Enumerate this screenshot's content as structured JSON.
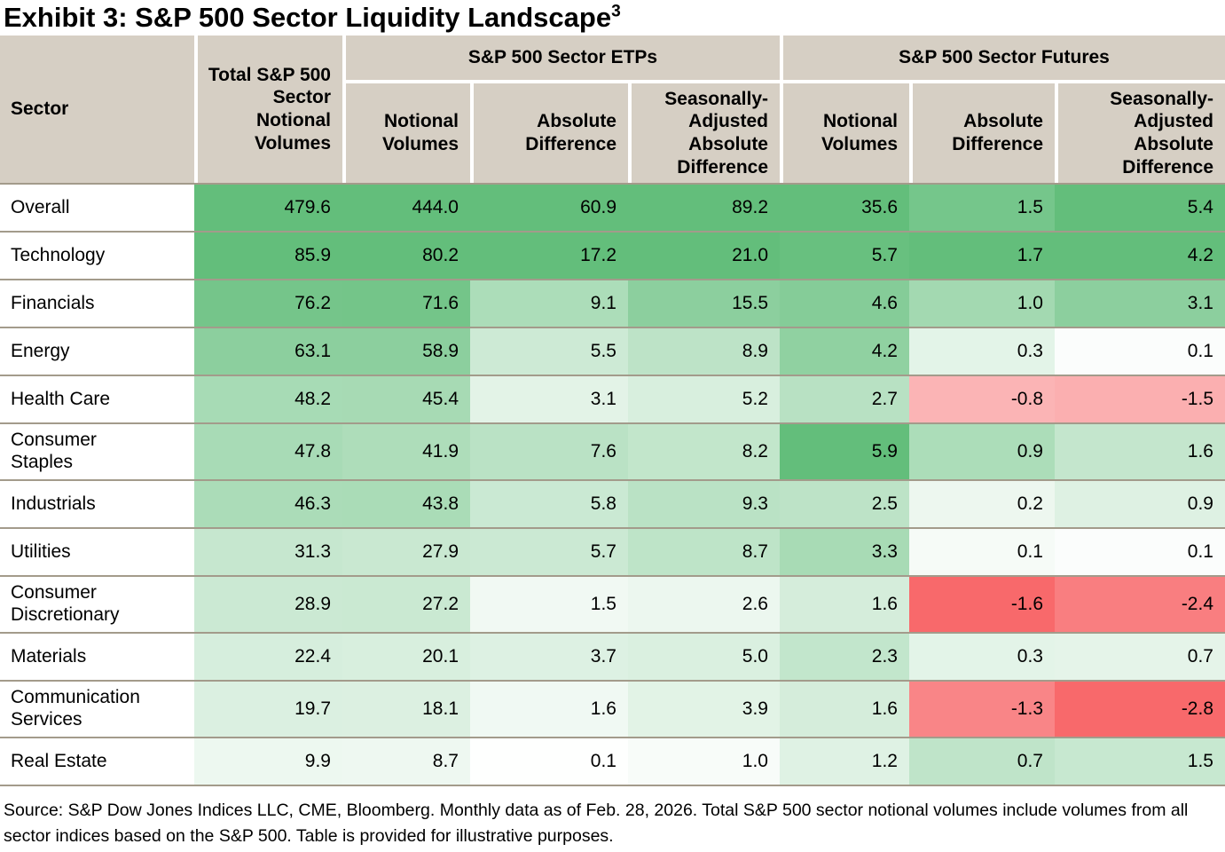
{
  "title": {
    "text": "Exhibit 3: S&P 500 Sector Liquidity Landscape",
    "superscript": "3"
  },
  "table": {
    "corner_header": "Sector",
    "total_header": "Total S&P 500 Sector Notional Volumes",
    "groups": [
      {
        "label": "S&P 500 Sector ETPs",
        "columns": [
          "Notional Volumes",
          "Absolute Difference",
          "Seasonally-Adjusted Absolute Difference"
        ]
      },
      {
        "label": "S&P 500 Sector Futures",
        "columns": [
          "Notional Volumes",
          "Absolute Difference",
          "Seasonally-Adjusted Absolute Difference"
        ]
      }
    ],
    "rows": [
      {
        "sector": "Overall",
        "tall": false,
        "values": [
          "479.6",
          "444.0",
          "60.9",
          "89.2",
          "35.6",
          "1.5",
          "5.4"
        ],
        "cell_colors": [
          "#63BE7B",
          "#63BE7B",
          "#63BE7B",
          "#63BE7B",
          "#63BE7B",
          "#75C68B",
          "#63BE7B"
        ]
      },
      {
        "sector": "Technology",
        "tall": false,
        "values": [
          "85.9",
          "80.2",
          "17.2",
          "21.0",
          "5.7",
          "1.7",
          "4.2"
        ],
        "cell_colors": [
          "#63BE7B",
          "#63BE7B",
          "#63BE7B",
          "#63BE7B",
          "#68C07F",
          "#63BE7B",
          "#63BE7B"
        ]
      },
      {
        "sector": "Financials",
        "tall": false,
        "values": [
          "76.2",
          "71.6",
          "9.1",
          "15.5",
          "4.6",
          "1.0",
          "3.1"
        ],
        "cell_colors": [
          "#75C58A",
          "#74C589",
          "#ACDDB9",
          "#8CCF9E",
          "#85CC98",
          "#A3D9B1",
          "#8CCF9E"
        ]
      },
      {
        "sector": "Energy",
        "tall": false,
        "values": [
          "63.1",
          "58.9",
          "5.5",
          "8.9",
          "4.2",
          "0.3",
          "0.1"
        ],
        "cell_colors": [
          "#8CCF9E",
          "#8CCF9E",
          "#CDEAD5",
          "#BDE3C7",
          "#90D1A1",
          "#E3F4E8",
          "#FBFDFC"
        ]
      },
      {
        "sector": "Health Care",
        "tall": false,
        "values": [
          "48.2",
          "45.4",
          "3.1",
          "5.2",
          "2.7",
          "-0.8",
          "-1.5"
        ],
        "cell_colors": [
          "#A7DBB5",
          "#A7DAB4",
          "#E3F3E7",
          "#D8EFDE",
          "#B8E1C3",
          "#FBB4B5",
          "#FBAFB0"
        ]
      },
      {
        "sector": "Consumer Staples",
        "tall": true,
        "values": [
          "47.8",
          "41.9",
          "7.6",
          "8.2",
          "5.9",
          "0.9",
          "1.6"
        ],
        "cell_colors": [
          "#A8DBB6",
          "#AEDDBA",
          "#BAE2C5",
          "#C2E6CB",
          "#63BE7B",
          "#ACDDB9",
          "#C4E6CD"
        ]
      },
      {
        "sector": "Industrials",
        "tall": false,
        "values": [
          "46.3",
          "43.8",
          "5.8",
          "9.3",
          "2.5",
          "0.2",
          "0.9"
        ],
        "cell_colors": [
          "#ABDCB8",
          "#AADCB7",
          "#CAE9D3",
          "#BAE2C5",
          "#BDE3C7",
          "#EDF7EF",
          "#DEF1E3"
        ]
      },
      {
        "sector": "Utilities",
        "tall": false,
        "values": [
          "31.3",
          "27.9",
          "5.7",
          "8.7",
          "3.3",
          "0.1",
          "0.1"
        ],
        "cell_colors": [
          "#C6E7CF",
          "#C9E8D1",
          "#CBE9D3",
          "#BEE4C8",
          "#A8DBB5",
          "#F6FBF7",
          "#FBFDFC"
        ]
      },
      {
        "sector": "Consumer Discretionary",
        "tall": true,
        "values": [
          "28.9",
          "27.2",
          "1.5",
          "2.6",
          "1.6",
          "-1.6",
          "-2.4"
        ],
        "cell_colors": [
          "#CBE9D3",
          "#CAE9D2",
          "#F1F9F3",
          "#ECF7EF",
          "#D5EDDB",
          "#F8696B",
          "#F97E80"
        ]
      },
      {
        "sector": "Materials",
        "tall": false,
        "values": [
          "22.4",
          "20.1",
          "3.7",
          "5.0",
          "2.3",
          "0.3",
          "0.7"
        ],
        "cell_colors": [
          "#D6EEDD",
          "#D8EFDE",
          "#DDF1E3",
          "#DAF0E0",
          "#C2E6CC",
          "#E3F4E8",
          "#E5F4E9"
        ]
      },
      {
        "sector": "Communication Services",
        "tall": true,
        "values": [
          "19.7",
          "18.1",
          "1.6",
          "3.9",
          "1.6",
          "-1.3",
          "-2.8"
        ],
        "cell_colors": [
          "#DBF0E1",
          "#DCF0E1",
          "#F0F9F3",
          "#E2F3E6",
          "#D5EDDB",
          "#F98587",
          "#F8696B"
        ]
      },
      {
        "sector": "Real Estate",
        "tall": false,
        "values": [
          "9.9",
          "8.7",
          "0.1",
          "1.0",
          "1.2",
          "0.7",
          "1.5"
        ],
        "cell_colors": [
          "#EDF8F0",
          "#EEF8F1",
          "#FEFFFE",
          "#F8FCF9",
          "#DFF2E4",
          "#BFE4C9",
          "#C7E8D0"
        ]
      }
    ]
  },
  "footer": {
    "source": "Source: S&P Dow Jones Indices LLC, CME, Bloomberg. Monthly data as of Feb. 28, 2026. Total S&P 500 sector notional volumes include volumes from all sector indices based on the S&P 500. Table is provided for illustrative purposes."
  },
  "colors": {
    "header_bg": "#D6CFC4",
    "row_divider": "#A39B8B",
    "heatmap_green_max": "#63BE7B",
    "heatmap_red_max": "#F8696B",
    "heatmap_mid": "#FFFFFF",
    "text": "#000000"
  }
}
